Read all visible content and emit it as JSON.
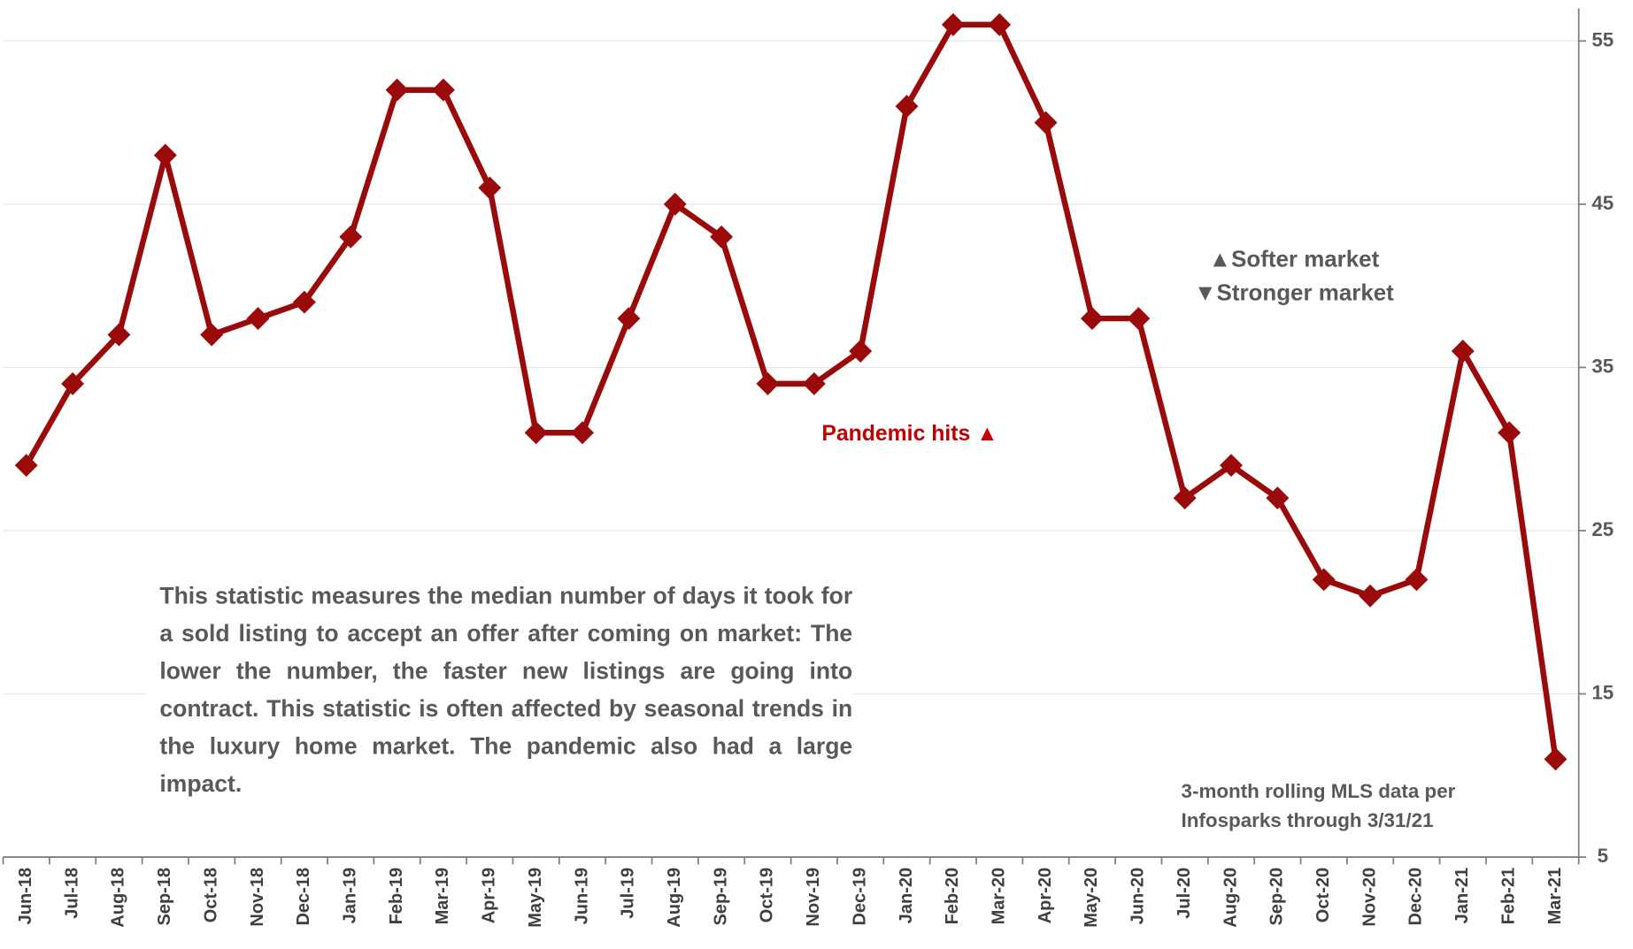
{
  "chart_data": {
    "type": "line",
    "categories": [
      "Jun-18",
      "Jul-18",
      "Aug-18",
      "Sep-18",
      "Oct-18",
      "Nov-18",
      "Dec-18",
      "Jan-19",
      "Feb-19",
      "Mar-19",
      "Apr-19",
      "May-19",
      "Jun-19",
      "Jul-19",
      "Aug-19",
      "Sep-19",
      "Oct-19",
      "Nov-19",
      "Dec-19",
      "Jan-20",
      "Feb-20",
      "Mar-20",
      "Apr-20",
      "May-20",
      "Jun-20",
      "Jul-20",
      "Aug-20",
      "Sep-20",
      "Oct-20",
      "Nov-20",
      "Dec-20",
      "Jan-21",
      "Feb-21",
      "Mar-21"
    ],
    "series": [
      {
        "color": "#9b0a0a",
        "values": [
          29,
          34,
          37,
          48,
          37,
          38,
          39,
          43,
          52,
          52,
          46,
          31,
          31,
          38,
          45,
          43,
          34,
          34,
          36,
          51,
          56,
          56,
          50,
          38,
          38,
          27,
          29,
          27,
          22,
          21,
          22,
          36,
          31,
          11
        ]
      }
    ],
    "ylim": [
      5,
      57
    ],
    "yticks": [
      5,
      15,
      25,
      35,
      45,
      55
    ],
    "grid": true,
    "annotations": {
      "softer": "▲Softer market",
      "stronger": "▼Stronger market",
      "pandemic": "Pandemic hits ▲",
      "description": "This statistic measures the median number of days it took for a sold listing to accept an offer after coming on market:  The lower the number, the faster new listings are going into contract. This statistic is often affected by seasonal trends in the luxury home market. The pandemic also had a large impact.",
      "source": "3-month rolling MLS data per Infosparks through 3/31/21"
    }
  }
}
